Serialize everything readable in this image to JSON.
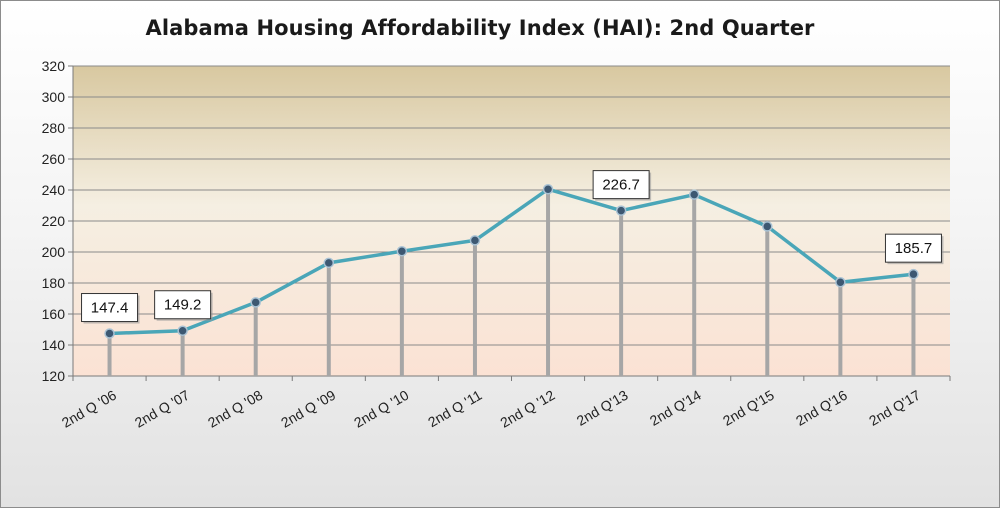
{
  "chart_data": {
    "type": "line",
    "title": "Alabama Housing Affordability Index (HAI):   2nd Quarter",
    "xlabel": "",
    "ylabel": "",
    "ylim": [
      120,
      320
    ],
    "ytick_step": 20,
    "grid": true,
    "legend": "none",
    "categories": [
      "2nd Q '06",
      "2nd Q '07",
      "2nd Q '08",
      "2nd Q '09",
      "2nd Q '10",
      "2nd Q '11",
      "2nd Q '12",
      "2nd Q'13",
      "2nd Q'14",
      "2nd Q'15",
      "2nd Q'16",
      "2nd Q'17"
    ],
    "series": [
      {
        "name": "HAI",
        "values": [
          147.4,
          149.2,
          167.5,
          193.0,
          200.5,
          207.5,
          240.5,
          226.7,
          237.0,
          216.5,
          180.5,
          185.7
        ]
      }
    ],
    "data_labels": [
      {
        "index": 0,
        "text": "147.4"
      },
      {
        "index": 1,
        "text": "149.2"
      },
      {
        "index": 7,
        "text": "226.7"
      },
      {
        "index": 11,
        "text": "185.7"
      }
    ],
    "colors": {
      "line": "#4aa6b8",
      "marker_fill": "#3d5872",
      "drop_line": "#a6a6a6",
      "gridline": "#8a8a8a",
      "plot_top": "#d8c8a0",
      "plot_mid": "#f5efe2",
      "plot_bottom": "#fbe2d4"
    }
  }
}
